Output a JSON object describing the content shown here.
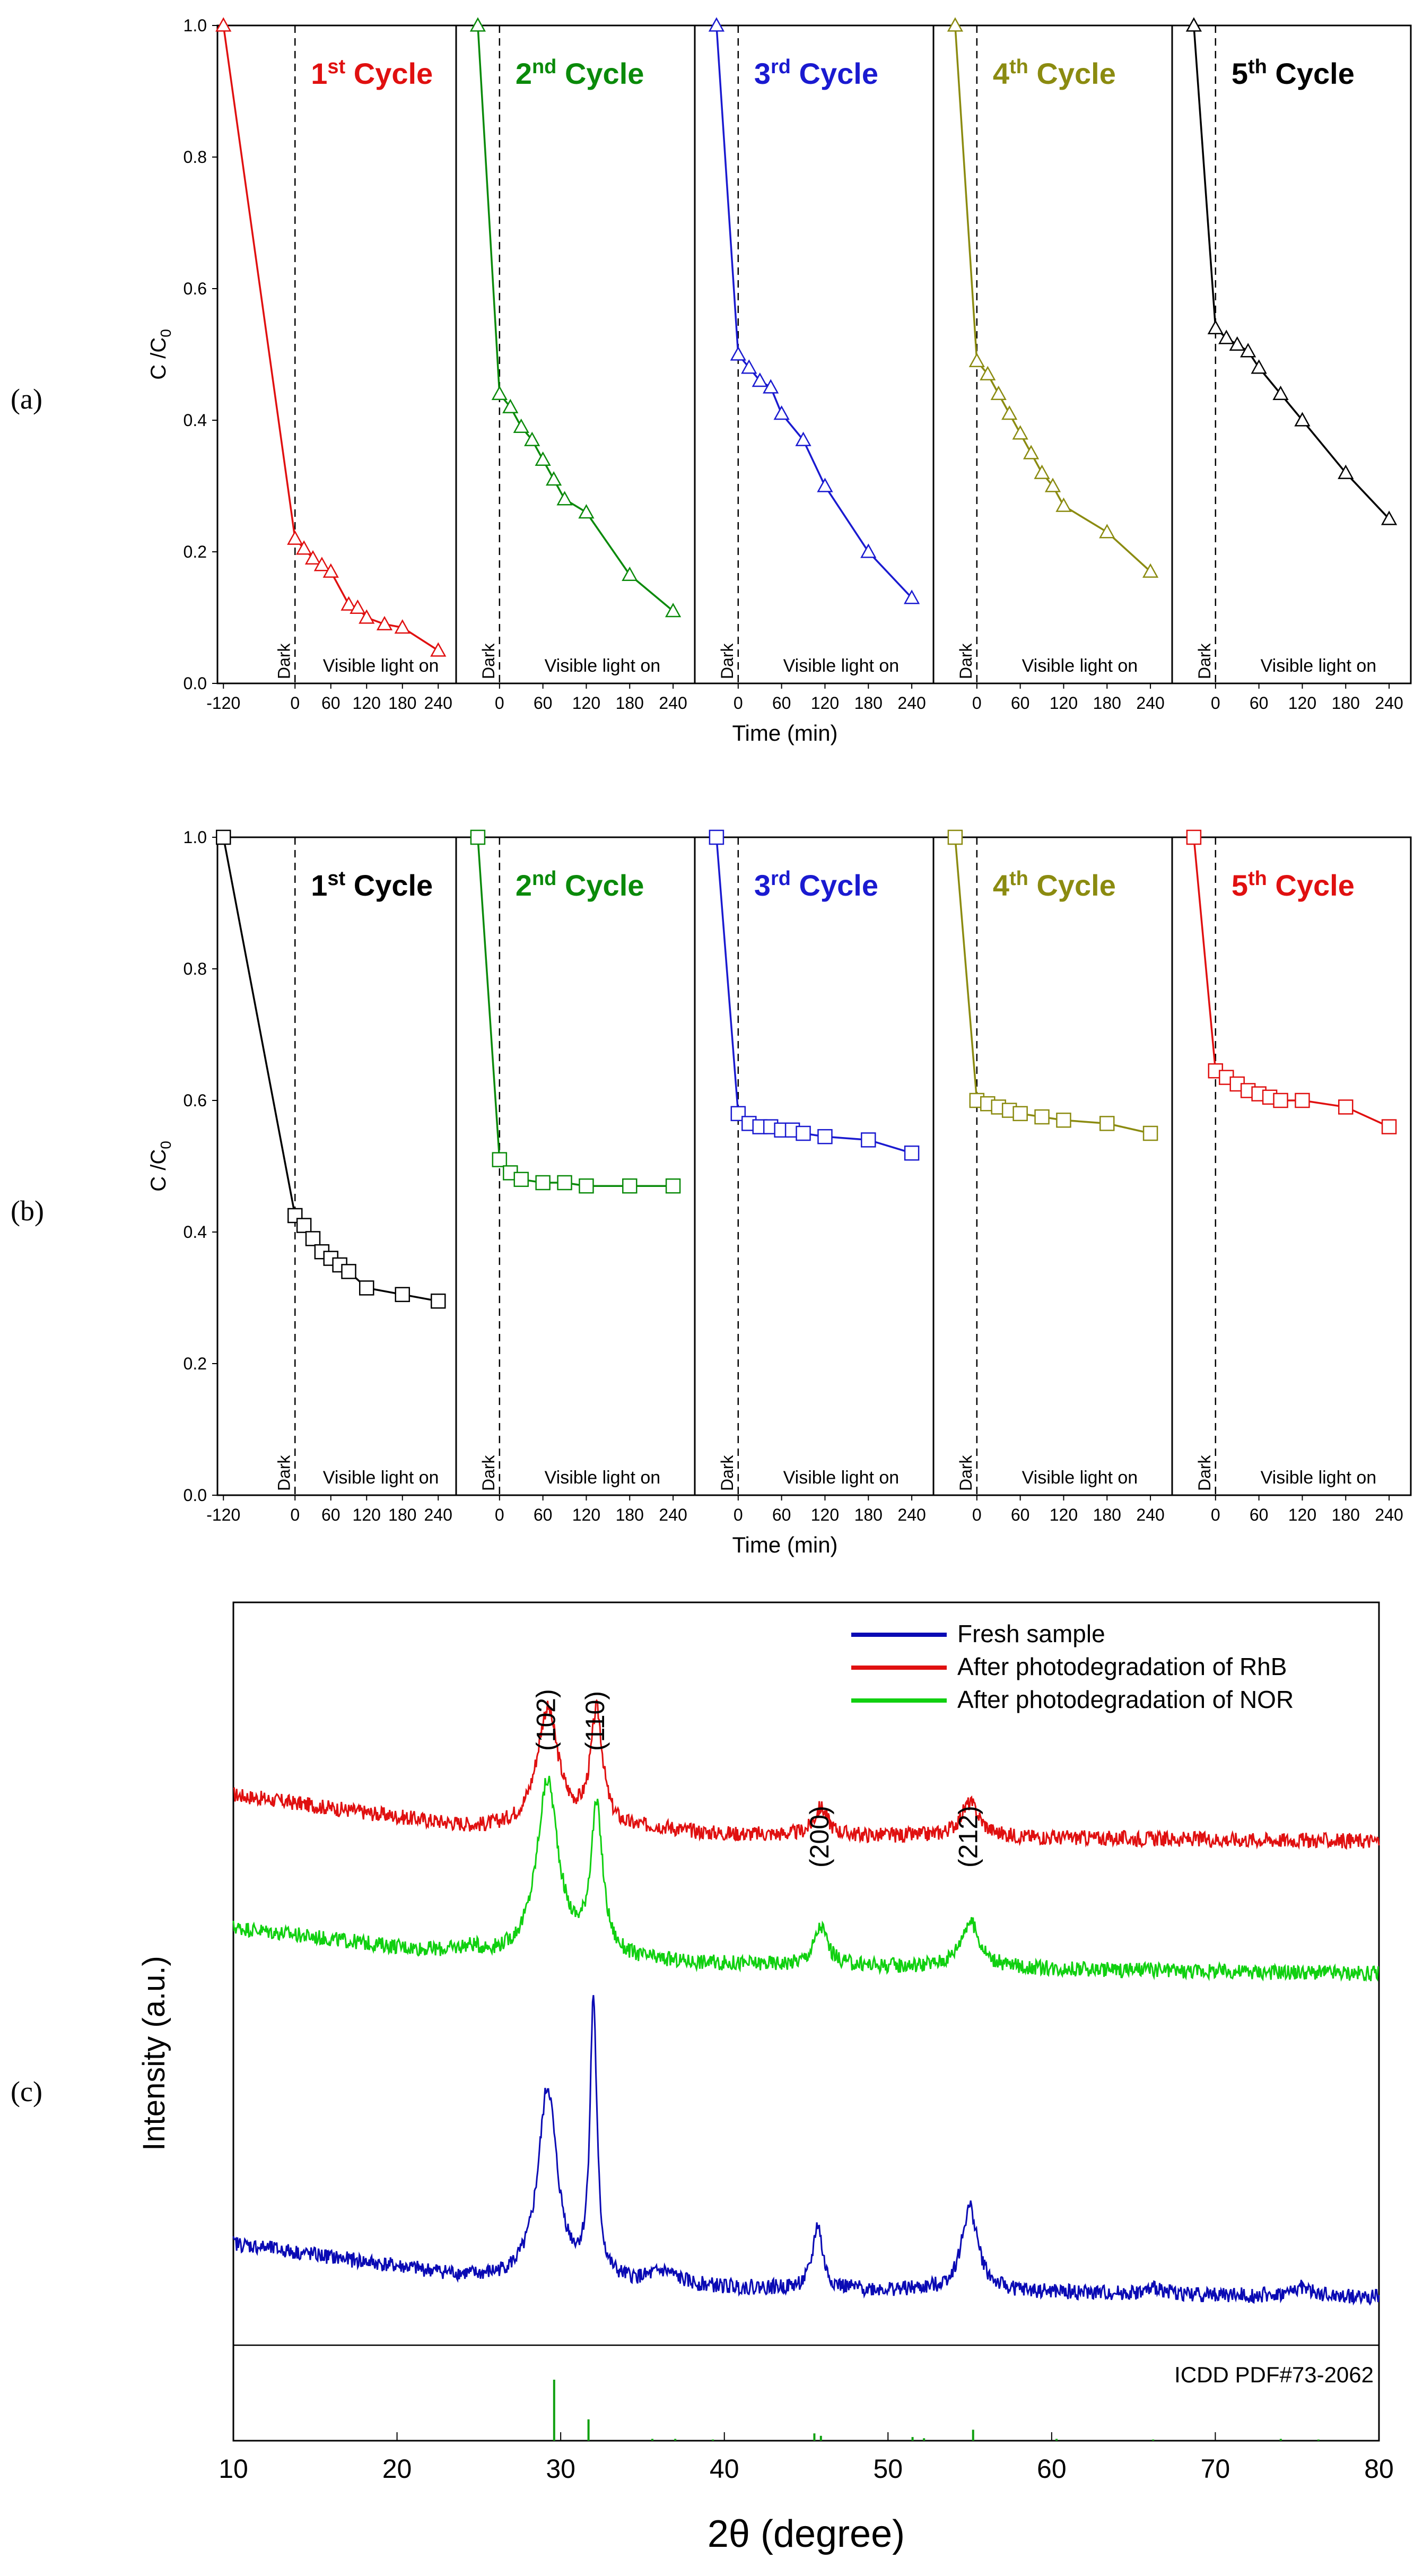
{
  "figure": {
    "panel_labels": [
      "(a)",
      "(b)",
      "(c)"
    ]
  },
  "chart_data": [
    {
      "id": "a",
      "type": "line",
      "marker": "triangle",
      "ylabel_main": "C /C",
      "ylabel_sub": "0",
      "xlabel": "Time (min)",
      "ylim": [
        0,
        1.0
      ],
      "yticks": [
        "0.0",
        "0.2",
        "0.4",
        "0.6",
        "0.8",
        "1.0"
      ],
      "xlim": [
        -120,
        270
      ],
      "xticks_first": [
        "-120",
        "0",
        "60",
        "120",
        "180",
        "240"
      ],
      "xticks": [
        "0",
        "60",
        "120",
        "180",
        "240"
      ],
      "dark_label": "Dark",
      "light_label": "Visible light on",
      "cycles": [
        {
          "label": "1",
          "sup": "st",
          "suffix": " Cycle",
          "color": "#e01010",
          "x": [
            -120,
            0,
            15,
            30,
            45,
            60,
            90,
            105,
            120,
            150,
            180,
            240
          ],
          "y": [
            1.0,
            0.22,
            0.205,
            0.19,
            0.18,
            0.17,
            0.12,
            0.115,
            0.1,
            0.09,
            0.085,
            0.05
          ]
        },
        {
          "label": "2",
          "sup": "nd",
          "suffix": " Cycle",
          "color": "#0a8a0a",
          "x": [
            -30,
            0,
            15,
            30,
            45,
            60,
            75,
            90,
            120,
            180,
            240
          ],
          "y": [
            1.0,
            0.44,
            0.42,
            0.39,
            0.37,
            0.34,
            0.31,
            0.28,
            0.26,
            0.165,
            0.11
          ]
        },
        {
          "label": "3",
          "sup": "rd",
          "suffix": " Cycle",
          "color": "#1a1ad0",
          "x": [
            -30,
            0,
            15,
            30,
            45,
            60,
            90,
            120,
            180,
            240
          ],
          "y": [
            1.0,
            0.5,
            0.48,
            0.46,
            0.45,
            0.41,
            0.37,
            0.3,
            0.2,
            0.13
          ]
        },
        {
          "label": "4",
          "sup": "th",
          "suffix": " Cycle",
          "color": "#8b8b10",
          "x": [
            -30,
            0,
            15,
            30,
            45,
            60,
            75,
            90,
            105,
            120,
            180,
            240
          ],
          "y": [
            1.0,
            0.49,
            0.47,
            0.44,
            0.41,
            0.38,
            0.35,
            0.32,
            0.3,
            0.27,
            0.23,
            0.17
          ]
        },
        {
          "label": "5",
          "sup": "th",
          "suffix": " Cycle",
          "color": "#000000",
          "x": [
            -30,
            0,
            15,
            30,
            45,
            60,
            90,
            120,
            180,
            240
          ],
          "y": [
            1.0,
            0.54,
            0.525,
            0.515,
            0.505,
            0.48,
            0.44,
            0.4,
            0.32,
            0.25
          ]
        }
      ]
    },
    {
      "id": "b",
      "type": "line",
      "marker": "square",
      "ylabel_main": "C /C",
      "ylabel_sub": "0",
      "xlabel": "Time (min)",
      "ylim": [
        0,
        1.0
      ],
      "yticks": [
        "0.0",
        "0.2",
        "0.4",
        "0.6",
        "0.8",
        "1.0"
      ],
      "xlim": [
        -120,
        270
      ],
      "xticks_first": [
        "-120",
        "0",
        "60",
        "120",
        "180",
        "240"
      ],
      "xticks": [
        "0",
        "60",
        "120",
        "180",
        "240"
      ],
      "dark_label": "Dark",
      "light_label": "Visible light on",
      "cycles": [
        {
          "label": "1",
          "sup": "st",
          "suffix": " Cycle",
          "color": "#000000",
          "x": [
            -120,
            0,
            15,
            30,
            45,
            60,
            75,
            90,
            120,
            180,
            240
          ],
          "y": [
            1.0,
            0.425,
            0.41,
            0.39,
            0.37,
            0.36,
            0.35,
            0.34,
            0.315,
            0.305,
            0.295
          ]
        },
        {
          "label": "2",
          "sup": "nd",
          "suffix": " Cycle",
          "color": "#0a8a0a",
          "x": [
            -30,
            0,
            15,
            30,
            60,
            90,
            120,
            180,
            240
          ],
          "y": [
            1.0,
            0.51,
            0.49,
            0.48,
            0.475,
            0.475,
            0.47,
            0.47,
            0.47
          ]
        },
        {
          "label": "3",
          "sup": "rd",
          "suffix": " Cycle",
          "color": "#1a1ad0",
          "x": [
            -30,
            0,
            15,
            30,
            45,
            60,
            75,
            90,
            120,
            180,
            240
          ],
          "y": [
            1.0,
            0.58,
            0.565,
            0.56,
            0.56,
            0.555,
            0.555,
            0.55,
            0.545,
            0.54,
            0.52
          ]
        },
        {
          "label": "4",
          "sup": "th",
          "suffix": " Cycle",
          "color": "#8b8b10",
          "x": [
            -30,
            0,
            15,
            30,
            45,
            60,
            90,
            120,
            180,
            240
          ],
          "y": [
            1.0,
            0.6,
            0.595,
            0.59,
            0.585,
            0.58,
            0.575,
            0.57,
            0.565,
            0.55
          ]
        },
        {
          "label": "5",
          "sup": "th",
          "suffix": " Cycle",
          "color": "#e01010",
          "x": [
            -30,
            0,
            15,
            30,
            45,
            60,
            75,
            90,
            120,
            180,
            240
          ],
          "y": [
            1.0,
            0.645,
            0.635,
            0.625,
            0.615,
            0.61,
            0.605,
            0.6,
            0.6,
            0.59,
            0.56
          ]
        }
      ]
    },
    {
      "id": "c",
      "type": "line",
      "xlabel": "2θ (degree)",
      "ylabel": "Intensity (a.u.)",
      "xlim": [
        10,
        80
      ],
      "xticks": [
        10,
        20,
        30,
        40,
        50,
        60,
        70,
        80
      ],
      "legend": [
        {
          "label": "Fresh sample",
          "color": "#0a0ab4"
        },
        {
          "label": "After photodegradation of RhB",
          "color": "#e01010"
        },
        {
          "label": "After photodegradation of NOR",
          "color": "#10d010"
        }
      ],
      "peak_labels": [
        {
          "text": "(102)",
          "two_theta": 29.2
        },
        {
          "text": "(110)",
          "two_theta": 32.2
        },
        {
          "text": "(200)",
          "two_theta": 45.9
        },
        {
          "text": "(212)",
          "two_theta": 55.0
        }
      ],
      "reference_label": "ICDD PDF#73-2062",
      "reference_color": "#10a010",
      "reference_lines": [
        {
          "two_theta": 29.6,
          "intensity": 100
        },
        {
          "two_theta": 31.7,
          "intensity": 35
        },
        {
          "two_theta": 45.5,
          "intensity": 12
        },
        {
          "two_theta": 45.9,
          "intensity": 8
        },
        {
          "two_theta": 51.5,
          "intensity": 6
        },
        {
          "two_theta": 52.2,
          "intensity": 4
        },
        {
          "two_theta": 55.2,
          "intensity": 18
        },
        {
          "two_theta": 35.6,
          "intensity": 3
        },
        {
          "two_theta": 37.0,
          "intensity": 3
        },
        {
          "two_theta": 39.3,
          "intensity": 2
        },
        {
          "two_theta": 60.3,
          "intensity": 3
        },
        {
          "two_theta": 66.2,
          "intensity": 2
        },
        {
          "two_theta": 74.0,
          "intensity": 3
        },
        {
          "two_theta": 76.3,
          "intensity": 2
        }
      ],
      "series": [
        {
          "name": "After photodegradation of RhB",
          "color": "#e01010",
          "baseline": [
            [
              10,
              30
            ],
            [
              25,
              8
            ],
            [
              40,
              4
            ],
            [
              80,
              0
            ]
          ],
          "peaks": [
            [
              29.2,
              78,
              0.8
            ],
            [
              32.2,
              75,
              0.45
            ],
            [
              45.9,
              18,
              0.5
            ],
            [
              55.0,
              22,
              0.7
            ],
            [
              36.0,
              3,
              1.5
            ]
          ]
        },
        {
          "name": "After photodegradation of NOR",
          "color": "#10d010",
          "baseline": [
            [
              10,
              30
            ],
            [
              25,
              10
            ],
            [
              40,
              6
            ],
            [
              80,
              0
            ]
          ],
          "peaks": [
            [
              29.2,
              115,
              0.8
            ],
            [
              32.2,
              95,
              0.45
            ],
            [
              45.9,
              25,
              0.5
            ],
            [
              55.0,
              30,
              0.7
            ],
            [
              24.5,
              5,
              1.0
            ]
          ]
        },
        {
          "name": "Fresh sample",
          "color": "#0a0ab4",
          "baseline": [
            [
              10,
              35
            ],
            [
              25,
              12
            ],
            [
              40,
              6
            ],
            [
              80,
              0
            ]
          ],
          "peaks": [
            [
              29.2,
              125,
              0.7
            ],
            [
              32.0,
              180,
              0.25
            ],
            [
              45.7,
              42,
              0.35
            ],
            [
              55.0,
              55,
              0.6
            ],
            [
              36.3,
              8,
              1.0
            ],
            [
              75.3,
              6,
              0.6
            ],
            [
              66.5,
              4,
              0.6
            ]
          ]
        }
      ]
    }
  ]
}
